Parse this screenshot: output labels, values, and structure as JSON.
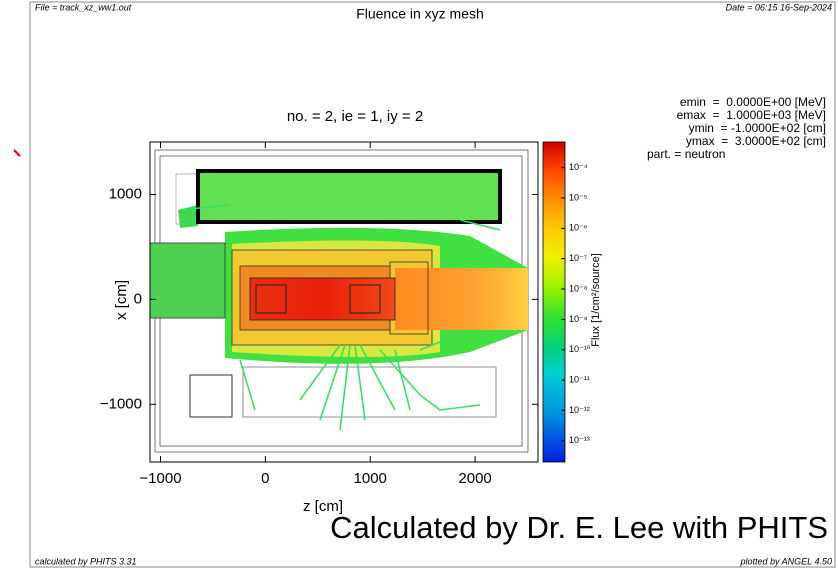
{
  "chart_data": {
    "type": "heatmap",
    "file": "File = track_xz_ww1.out",
    "title": "Fluence in xyz mesh",
    "date": "Date = 06:15 16-Sep-2024",
    "subtitle": "no. = 2,  ie = 1,  iy = 2",
    "info": [
      "emin  =  0.0000E+00 [MeV]",
      "emax  =  1.0000E+03 [MeV]",
      "ymin  = -1.0000E+02 [cm]",
      "ymax  =  3.0000E+02 [cm]",
      "part. = neutron"
    ],
    "x_label": "z [cm]",
    "y_label": "x [cm]",
    "colorbar_label": "Flux [1/cm²/source]",
    "xlim": [
      -1100,
      2600
    ],
    "xticks": [
      {
        "value": -1000,
        "label": "−1000"
      },
      0,
      1000,
      2000
    ],
    "ylim": [
      -1550,
      1500
    ],
    "yticks": [
      {
        "value": -1000,
        "label": "−1000"
      },
      0,
      1000
    ],
    "zlim": [
      2e-14,
      0.0007
    ],
    "zscale": "log",
    "zticks": [
      {
        "value": 0.0001,
        "label": "10⁻⁴"
      },
      {
        "value": 1e-05,
        "label": "10⁻⁵"
      },
      {
        "value": 1e-06,
        "label": "10⁻⁶"
      },
      {
        "value": 1e-07,
        "label": "10⁻⁷"
      },
      {
        "value": 1e-08,
        "label": "10⁻⁸"
      },
      {
        "value": 1e-09,
        "label": "10⁻⁹"
      },
      {
        "value": 1e-10,
        "label": "10⁻¹⁰"
      },
      {
        "value": 1e-11,
        "label": "10⁻¹¹"
      },
      {
        "value": 1e-12,
        "label": "10⁻¹²"
      },
      {
        "value": 1e-13,
        "label": "10⁻¹³"
      }
    ],
    "footer_left": "calculated by PHITS 3.31",
    "footer_right": "plotted by ANGEL 4.50",
    "annotation": "Calculated by Dr. E. Lee with PHITS"
  }
}
